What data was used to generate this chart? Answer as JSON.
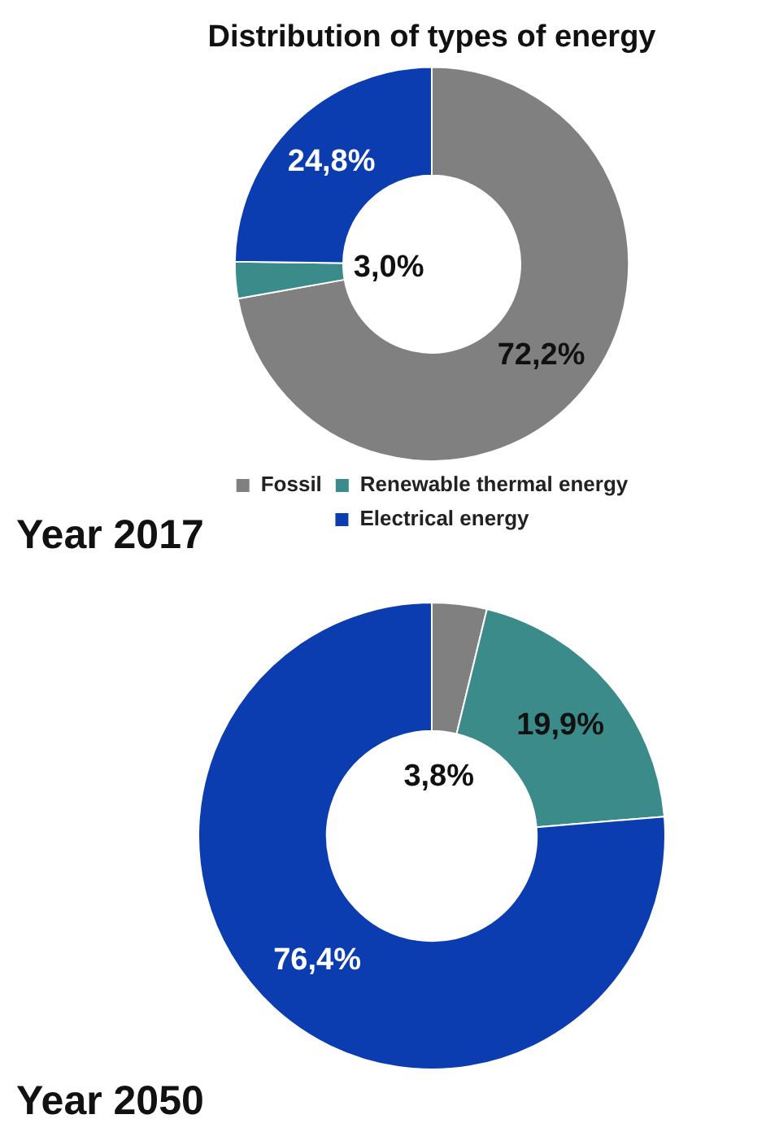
{
  "chart_data": [
    {
      "type": "donut",
      "title": "Distribution of types of energy",
      "categories": [
        "Fossil",
        "Renewable thermal energy",
        "Electrical energy"
      ],
      "values": [
        72.2,
        3.0,
        24.8
      ],
      "colors": [
        "#808080",
        "#3b8b8b",
        "#0b3db0"
      ],
      "value_labels": [
        "72,2%",
        "3,0%",
        "24,8%"
      ],
      "legend": "bottom",
      "annotations": [
        "Year 2017"
      ]
    },
    {
      "type": "donut",
      "categories": [
        null,
        null,
        null
      ],
      "values": [
        3.8,
        19.9,
        76.4
      ],
      "colors": [
        "#808080",
        "#3b8b8b",
        "#0b3db0"
      ],
      "value_labels": [
        "3,8%",
        "19,9%",
        "76,4%"
      ],
      "annotations": [
        "Year 2050"
      ]
    }
  ]
}
